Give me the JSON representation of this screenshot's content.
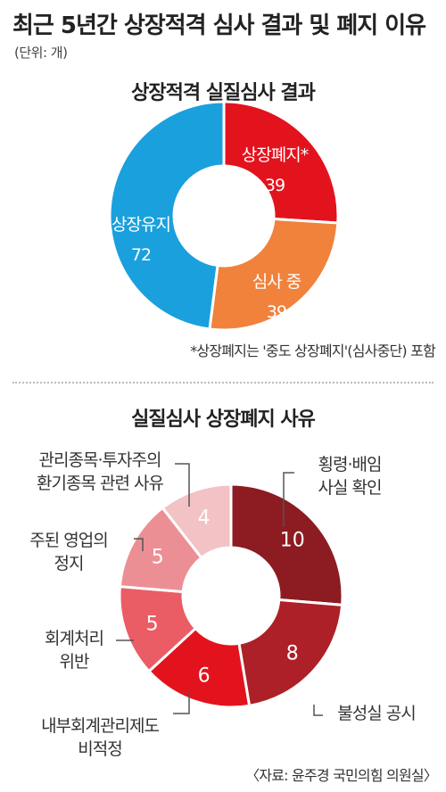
{
  "header": {
    "title": "최근 5년간 상장적격 심사 결과 및 폐지 이유",
    "unit": "(단위: 개)"
  },
  "chart_data": [
    {
      "type": "pie",
      "title": "상장적격 실질심사 결과",
      "categories": [
        "상장폐지*",
        "심사 중",
        "상장유지"
      ],
      "values": [
        39,
        39,
        72
      ],
      "colors": [
        "#e3131d",
        "#f0823c",
        "#1aa0dd"
      ],
      "note": "*상장폐지는 '중도 상장폐지'(심사중단) 포함"
    },
    {
      "type": "pie",
      "title": "실질심사 상장폐지 사유",
      "categories": [
        "횡령·배임 사실 확인",
        "불성실 공시",
        "내부회계관리제도 비적정",
        "회계처리 위반",
        "주된 영업의 정지",
        "관리종목·투자주의 환기종목 관련 사유"
      ],
      "label_lines": [
        [
          "횡령·배임",
          "사실 확인"
        ],
        [
          "불성실 공시"
        ],
        [
          "내부회계관리제도",
          "비적정"
        ],
        [
          "회계처리",
          "위반"
        ],
        [
          "주된 영업의",
          "정지"
        ],
        [
          "관리종목·투자주의",
          "환기종목 관련 사유"
        ]
      ],
      "values": [
        10,
        8,
        6,
        5,
        5,
        4
      ],
      "colors": [
        "#8c1c21",
        "#ad2028",
        "#e3131d",
        "#ea5d65",
        "#ec8f95",
        "#f3c2c5"
      ]
    }
  ],
  "source": "〈자료: 윤주경 국민의힘 의원실〉"
}
